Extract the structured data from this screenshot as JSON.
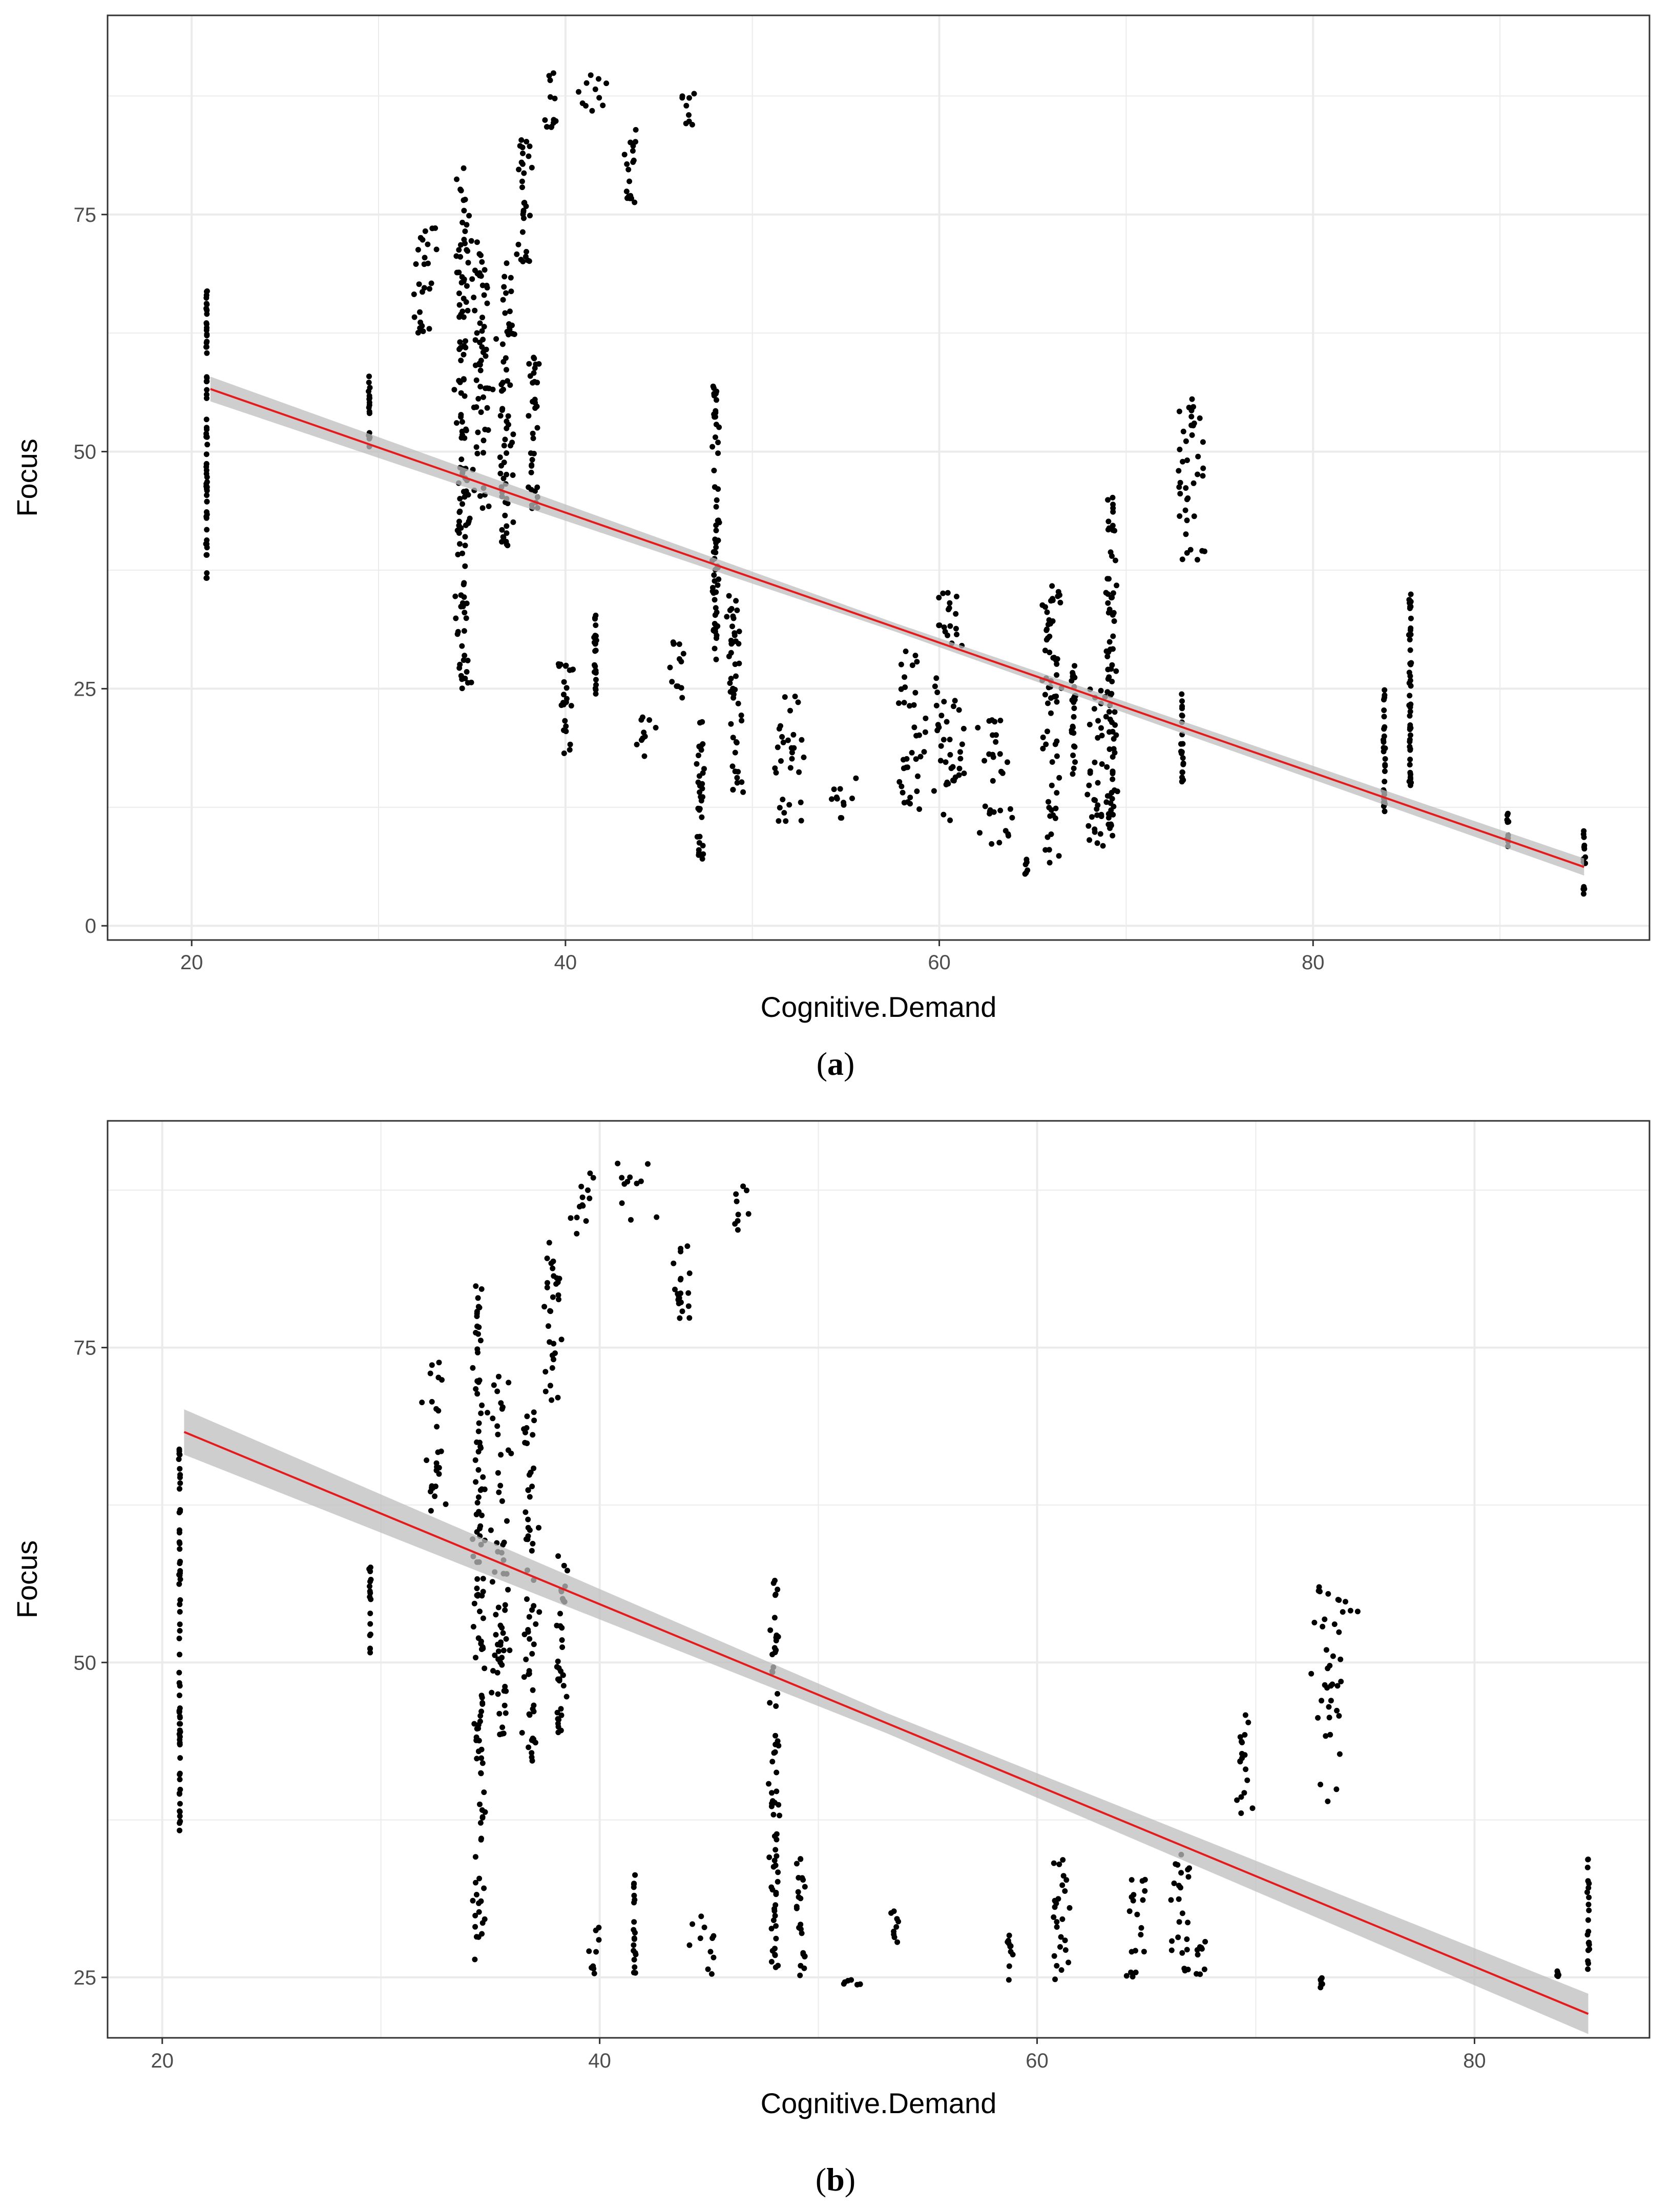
{
  "figure": {
    "caption_a": "a",
    "caption_b": "b"
  },
  "chart_data": [
    {
      "type": "scatter",
      "panel": "a",
      "title": "",
      "xlabel": "Cognitive.Demand",
      "ylabel": "Focus",
      "xlim": [
        15.5,
        98
      ],
      "ylim": [
        -1.5,
        96
      ],
      "xticks": [
        20,
        40,
        60,
        80
      ],
      "yticks": [
        0,
        25,
        50,
        75
      ],
      "grid": true,
      "legend": "none",
      "colors": {
        "points": "#000000",
        "fit_line": "#e41a1c",
        "confidence_band": "#bdbdbd",
        "grid": "#ebebeb",
        "panel_border": "#333333"
      },
      "fit_line": {
        "x": [
          21,
          94.5
        ],
        "y": [
          56.6,
          6.2
        ],
        "band_halfwidth_start": 1.3,
        "band_halfwidth_end": 0.9
      },
      "point_clusters": [
        {
          "x": 20.8,
          "xs": 0.05,
          "y": [
            36.5,
            67
          ]
        },
        {
          "x": 29.5,
          "xs": 0.05,
          "y": [
            50.5,
            58
          ]
        },
        {
          "x": 32.5,
          "xs": 1.0,
          "y": [
            62,
            74
          ]
        },
        {
          "x": 34.5,
          "xs": 0.5,
          "y": [
            25,
            80
          ]
        },
        {
          "x": 35.5,
          "xs": 0.7,
          "y": [
            44,
            73
          ]
        },
        {
          "x": 36.8,
          "xs": 0.6,
          "y": [
            40,
            70
          ]
        },
        {
          "x": 37.8,
          "xs": 0.6,
          "y": [
            70,
            84
          ]
        },
        {
          "x": 38.3,
          "xs": 0.4,
          "y": [
            44,
            60
          ]
        },
        {
          "x": 39.2,
          "xs": 0.8,
          "y": [
            84,
            90
          ]
        },
        {
          "x": 41.5,
          "xs": 1.3,
          "y": [
            85,
            90
          ]
        },
        {
          "x": 40.0,
          "xs": 0.6,
          "y": [
            18,
            29
          ]
        },
        {
          "x": 41.6,
          "xs": 0.1,
          "y": [
            23,
            34
          ]
        },
        {
          "x": 43.5,
          "xs": 0.6,
          "y": [
            76,
            84
          ]
        },
        {
          "x": 44.3,
          "xs": 0.8,
          "y": [
            17.5,
            22
          ]
        },
        {
          "x": 46.0,
          "xs": 0.5,
          "y": [
            24,
            30
          ]
        },
        {
          "x": 46.5,
          "xs": 0.7,
          "y": [
            84,
            88
          ]
        },
        {
          "x": 47.2,
          "xs": 0.3,
          "y": [
            7,
            22
          ]
        },
        {
          "x": 48.0,
          "xs": 0.3,
          "y": [
            28,
            57
          ]
        },
        {
          "x": 49.0,
          "xs": 0.6,
          "y": [
            14,
            35
          ]
        },
        {
          "x": 52.0,
          "xs": 1.4,
          "y": [
            11,
            24.5
          ]
        },
        {
          "x": 54.5,
          "xs": 1.5,
          "y": [
            11,
            16
          ]
        },
        {
          "x": 58.5,
          "xs": 1.2,
          "y": [
            12,
            29
          ]
        },
        {
          "x": 60.5,
          "xs": 1.2,
          "y": [
            11,
            36
          ]
        },
        {
          "x": 63.0,
          "xs": 1.5,
          "y": [
            8,
            22
          ]
        },
        {
          "x": 64.7,
          "xs": 0.15,
          "y": [
            5,
            7
          ]
        },
        {
          "x": 66.0,
          "xs": 0.8,
          "y": [
            6.5,
            36
          ]
        },
        {
          "x": 67.2,
          "xs": 0.2,
          "y": [
            16,
            28
          ]
        },
        {
          "x": 68.5,
          "xs": 0.7,
          "y": [
            8,
            25
          ]
        },
        {
          "x": 69.2,
          "xs": 0.4,
          "y": [
            9,
            46
          ]
        },
        {
          "x": 73.0,
          "xs": 0.1,
          "y": [
            15,
            25
          ]
        },
        {
          "x": 73.5,
          "xs": 1.4,
          "y": [
            38,
            56
          ]
        },
        {
          "x": 83.8,
          "xs": 0.1,
          "y": [
            12,
            25
          ]
        },
        {
          "x": 85.2,
          "xs": 0.1,
          "y": [
            13,
            35
          ]
        },
        {
          "x": 90.4,
          "xs": 0.1,
          "y": [
            7.5,
            12
          ]
        },
        {
          "x": 94.5,
          "xs": 0.1,
          "y": [
            3,
            10
          ]
        }
      ]
    },
    {
      "type": "scatter",
      "panel": "b",
      "title": "",
      "xlabel": "Cognitive.Demand",
      "ylabel": "Focus",
      "xlim": [
        17.5,
        88
      ],
      "ylim": [
        20.2,
        93
      ],
      "xticks": [
        20,
        40,
        60,
        80
      ],
      "yticks": [
        25,
        50,
        75
      ],
      "grid": true,
      "legend": "none",
      "colors": {
        "points": "#000000",
        "fit_line": "#e41a1c",
        "confidence_band": "#bdbdbd",
        "grid": "#ebebeb",
        "panel_border": "#333333"
      },
      "fit_line": {
        "x": [
          21,
          85.2
        ],
        "y": [
          68.3,
          22.1
        ],
        "band_halfwidth_start": 1.8,
        "band_halfwidth_end": 1.6
      },
      "point_clusters": [
        {
          "x": 20.8,
          "xs": 0.05,
          "y": [
            36.5,
            67
          ]
        },
        {
          "x": 29.5,
          "xs": 0.05,
          "y": [
            50.5,
            58
          ]
        },
        {
          "x": 32.5,
          "xs": 0.7,
          "y": [
            62,
            74
          ]
        },
        {
          "x": 34.5,
          "xs": 0.4,
          "y": [
            25.5,
            80
          ]
        },
        {
          "x": 35.5,
          "xs": 0.6,
          "y": [
            44,
            73
          ]
        },
        {
          "x": 36.8,
          "xs": 0.6,
          "y": [
            42,
            70
          ]
        },
        {
          "x": 37.8,
          "xs": 0.6,
          "y": [
            70,
            84
          ]
        },
        {
          "x": 38.3,
          "xs": 0.4,
          "y": [
            44,
            60
          ]
        },
        {
          "x": 39.2,
          "xs": 0.8,
          "y": [
            84,
            90
          ]
        },
        {
          "x": 41.5,
          "xs": 1.3,
          "y": [
            85,
            90
          ]
        },
        {
          "x": 39.8,
          "xs": 0.5,
          "y": [
            25,
            29
          ]
        },
        {
          "x": 41.6,
          "xs": 0.1,
          "y": [
            25,
            34
          ]
        },
        {
          "x": 43.8,
          "xs": 0.6,
          "y": [
            76,
            85
          ]
        },
        {
          "x": 44.5,
          "xs": 1.5,
          "y": [
            25,
            30
          ]
        },
        {
          "x": 46.5,
          "xs": 0.7,
          "y": [
            84,
            88
          ]
        },
        {
          "x": 48.0,
          "xs": 0.3,
          "y": [
            25,
            57
          ]
        },
        {
          "x": 49.2,
          "xs": 0.5,
          "y": [
            24.5,
            35
          ]
        },
        {
          "x": 51.5,
          "xs": 0.8,
          "y": [
            24,
            25
          ]
        },
        {
          "x": 53.5,
          "xs": 0.6,
          "y": [
            27,
            31
          ]
        },
        {
          "x": 58.7,
          "xs": 0.2,
          "y": [
            24.5,
            29
          ]
        },
        {
          "x": 61.0,
          "xs": 0.7,
          "y": [
            24.5,
            36
          ]
        },
        {
          "x": 64.5,
          "xs": 1.0,
          "y": [
            24.5,
            33
          ]
        },
        {
          "x": 67.5,
          "xs": 0.4,
          "y": [
            24,
            28
          ]
        },
        {
          "x": 66.5,
          "xs": 0.7,
          "y": [
            25,
            36
          ]
        },
        {
          "x": 69.5,
          "xs": 0.5,
          "y": [
            38,
            46
          ]
        },
        {
          "x": 73.0,
          "xs": 0.1,
          "y": [
            24,
            25
          ]
        },
        {
          "x": 73.5,
          "xs": 1.4,
          "y": [
            38,
            56
          ]
        },
        {
          "x": 83.8,
          "xs": 0.1,
          "y": [
            25,
            25.5
          ]
        },
        {
          "x": 85.2,
          "xs": 0.1,
          "y": [
            25.5,
            35
          ]
        }
      ]
    }
  ]
}
